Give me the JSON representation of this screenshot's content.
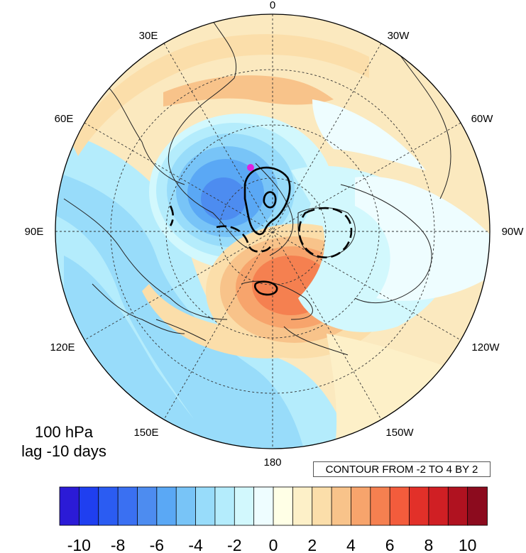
{
  "map": {
    "projection": "north-polar-stereographic",
    "longitude_labels": {
      "top": "0",
      "upper_left": "30E",
      "upper_right": "30W",
      "mid_upper_left": "60E",
      "mid_upper_right": "60W",
      "left": "90E",
      "right": "90W",
      "lower_left": "120E",
      "lower_right": "120W",
      "low_left": "150E",
      "low_right": "150W",
      "bottom": "180"
    }
  },
  "annotation": {
    "level": "100 hPa",
    "lag": "lag -10 days"
  },
  "contour_info": "CONTOUR FROM -2 TO 4 BY 2",
  "colorbar": {
    "labels": [
      "-10",
      "-8",
      "-6",
      "-4",
      "-2",
      "0",
      "2",
      "4",
      "6",
      "8",
      "10"
    ],
    "colors": [
      "#2b1bd6",
      "#1f3ff0",
      "#2b5cf2",
      "#3a70f2",
      "#4d8cf0",
      "#5aa8f5",
      "#78c4f7",
      "#98dcfa",
      "#b4ecfc",
      "#d2f8fd",
      "#eefdff",
      "#ffffe6",
      "#fdf0c8",
      "#fbdeaa",
      "#f8c38a",
      "#f7a46c",
      "#f58050",
      "#f35c3c",
      "#e23029",
      "#d01f24",
      "#b01220",
      "#8c0b1e"
    ]
  },
  "chart_data": {
    "type": "heatmap",
    "description_field": "anomaly shading on polar map",
    "color_levels": [
      -10,
      -9,
      -8,
      -7,
      -6,
      -5,
      -4,
      -3,
      -2,
      -1,
      0,
      1,
      2,
      3,
      4,
      5,
      6,
      7,
      8,
      9,
      10
    ],
    "contour_range": [
      -2,
      4
    ],
    "contour_interval": 2
  }
}
